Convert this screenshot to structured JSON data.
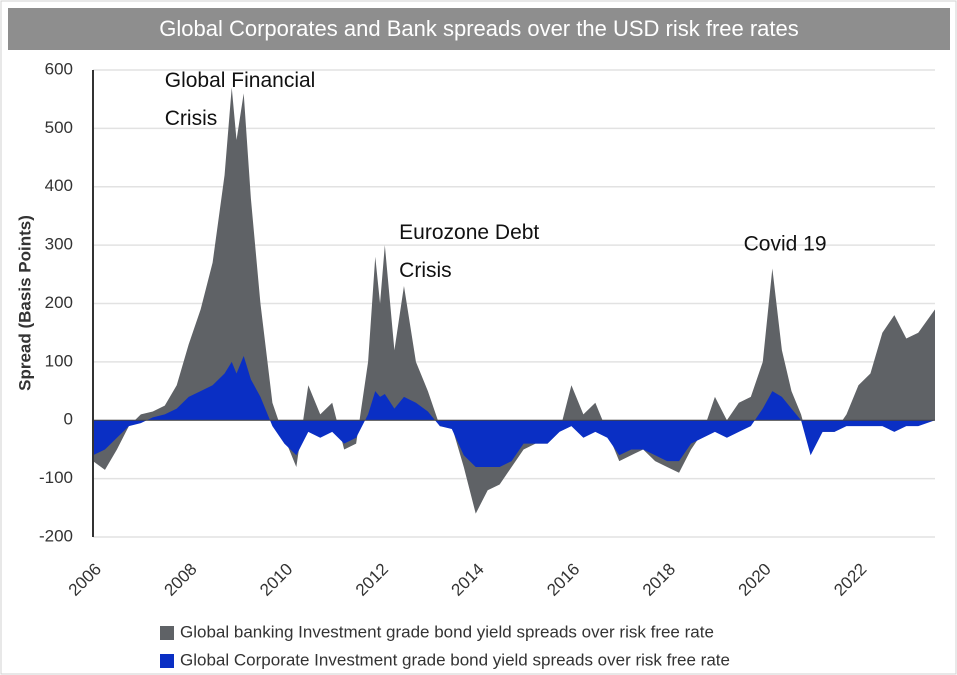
{
  "chart_data": {
    "type": "area",
    "title": "Global Corporates and Bank spreads over the USD risk free rates",
    "y_label": "Spread (Basis Points)",
    "xlim": [
      2006,
      2023.6
    ],
    "xticks": [
      2006,
      2008,
      2010,
      2012,
      2014,
      2016,
      2018,
      2020,
      2022
    ],
    "ylim": [
      -200,
      600
    ],
    "yticks": [
      -200,
      -100,
      0,
      100,
      200,
      300,
      400,
      500,
      600
    ],
    "grid": true,
    "legend": "bottom",
    "x": [
      2006.0,
      2006.25,
      2006.5,
      2006.75,
      2007.0,
      2007.25,
      2007.5,
      2007.75,
      2008.0,
      2008.25,
      2008.5,
      2008.75,
      2008.9,
      2009.0,
      2009.15,
      2009.3,
      2009.5,
      2009.75,
      2010.0,
      2010.25,
      2010.5,
      2010.75,
      2011.0,
      2011.25,
      2011.5,
      2011.75,
      2011.9,
      2012.0,
      2012.1,
      2012.3,
      2012.5,
      2012.75,
      2013.0,
      2013.25,
      2013.5,
      2013.75,
      2014.0,
      2014.25,
      2014.5,
      2014.75,
      2015.0,
      2015.25,
      2015.5,
      2015.75,
      2016.0,
      2016.25,
      2016.5,
      2016.75,
      2017.0,
      2017.25,
      2017.5,
      2017.75,
      2018.0,
      2018.25,
      2018.5,
      2018.75,
      2019.0,
      2019.25,
      2019.5,
      2019.75,
      2020.0,
      2020.2,
      2020.4,
      2020.6,
      2020.8,
      2021.0,
      2021.25,
      2021.5,
      2021.75,
      2022.0,
      2022.25,
      2022.5,
      2022.75,
      2023.0,
      2023.25,
      2023.6
    ],
    "series": [
      {
        "name": "Global banking Investment grade bond yield spreads over risk free rate",
        "color": "#5f6266",
        "values": [
          -70,
          -85,
          -50,
          -10,
          10,
          15,
          25,
          60,
          130,
          190,
          270,
          420,
          570,
          480,
          560,
          380,
          200,
          30,
          -30,
          -80,
          60,
          10,
          30,
          -50,
          -40,
          100,
          280,
          200,
          300,
          120,
          230,
          100,
          50,
          -10,
          -10,
          -80,
          -160,
          -120,
          -110,
          -80,
          -50,
          -40,
          -40,
          -20,
          60,
          10,
          30,
          -20,
          -70,
          -60,
          -50,
          -70,
          -80,
          -90,
          -50,
          -20,
          40,
          0,
          30,
          40,
          100,
          260,
          120,
          50,
          10,
          -50,
          -20,
          -20,
          10,
          60,
          80,
          150,
          180,
          140,
          150,
          190
        ]
      },
      {
        "name": "Global Corporate Investment grade bond yield spreads over risk free rate",
        "color": "#0a2fc4",
        "values": [
          -60,
          -50,
          -30,
          -10,
          -5,
          5,
          10,
          20,
          40,
          50,
          60,
          80,
          100,
          80,
          110,
          70,
          40,
          -10,
          -40,
          -60,
          -20,
          -30,
          -20,
          -40,
          -30,
          10,
          50,
          40,
          45,
          20,
          40,
          30,
          15,
          -10,
          -15,
          -60,
          -80,
          -80,
          -80,
          -70,
          -40,
          -40,
          -40,
          -20,
          -10,
          -30,
          -20,
          -30,
          -60,
          -50,
          -50,
          -60,
          -70,
          -70,
          -40,
          -30,
          -20,
          -30,
          -20,
          -10,
          20,
          50,
          40,
          20,
          0,
          -60,
          -20,
          -20,
          -10,
          -10,
          -10,
          -10,
          -20,
          -10,
          -10,
          0
        ]
      }
    ],
    "annotations": [
      {
        "lines": [
          "Global Financial",
          "Crisis"
        ],
        "x": 2007.5,
        "y": 580
      },
      {
        "lines": [
          "Eurozone Debt",
          "Crisis"
        ],
        "x": 2012.4,
        "y": 320
      },
      {
        "lines": [
          "Covid 19"
        ],
        "x": 2019.6,
        "y": 300
      }
    ]
  }
}
